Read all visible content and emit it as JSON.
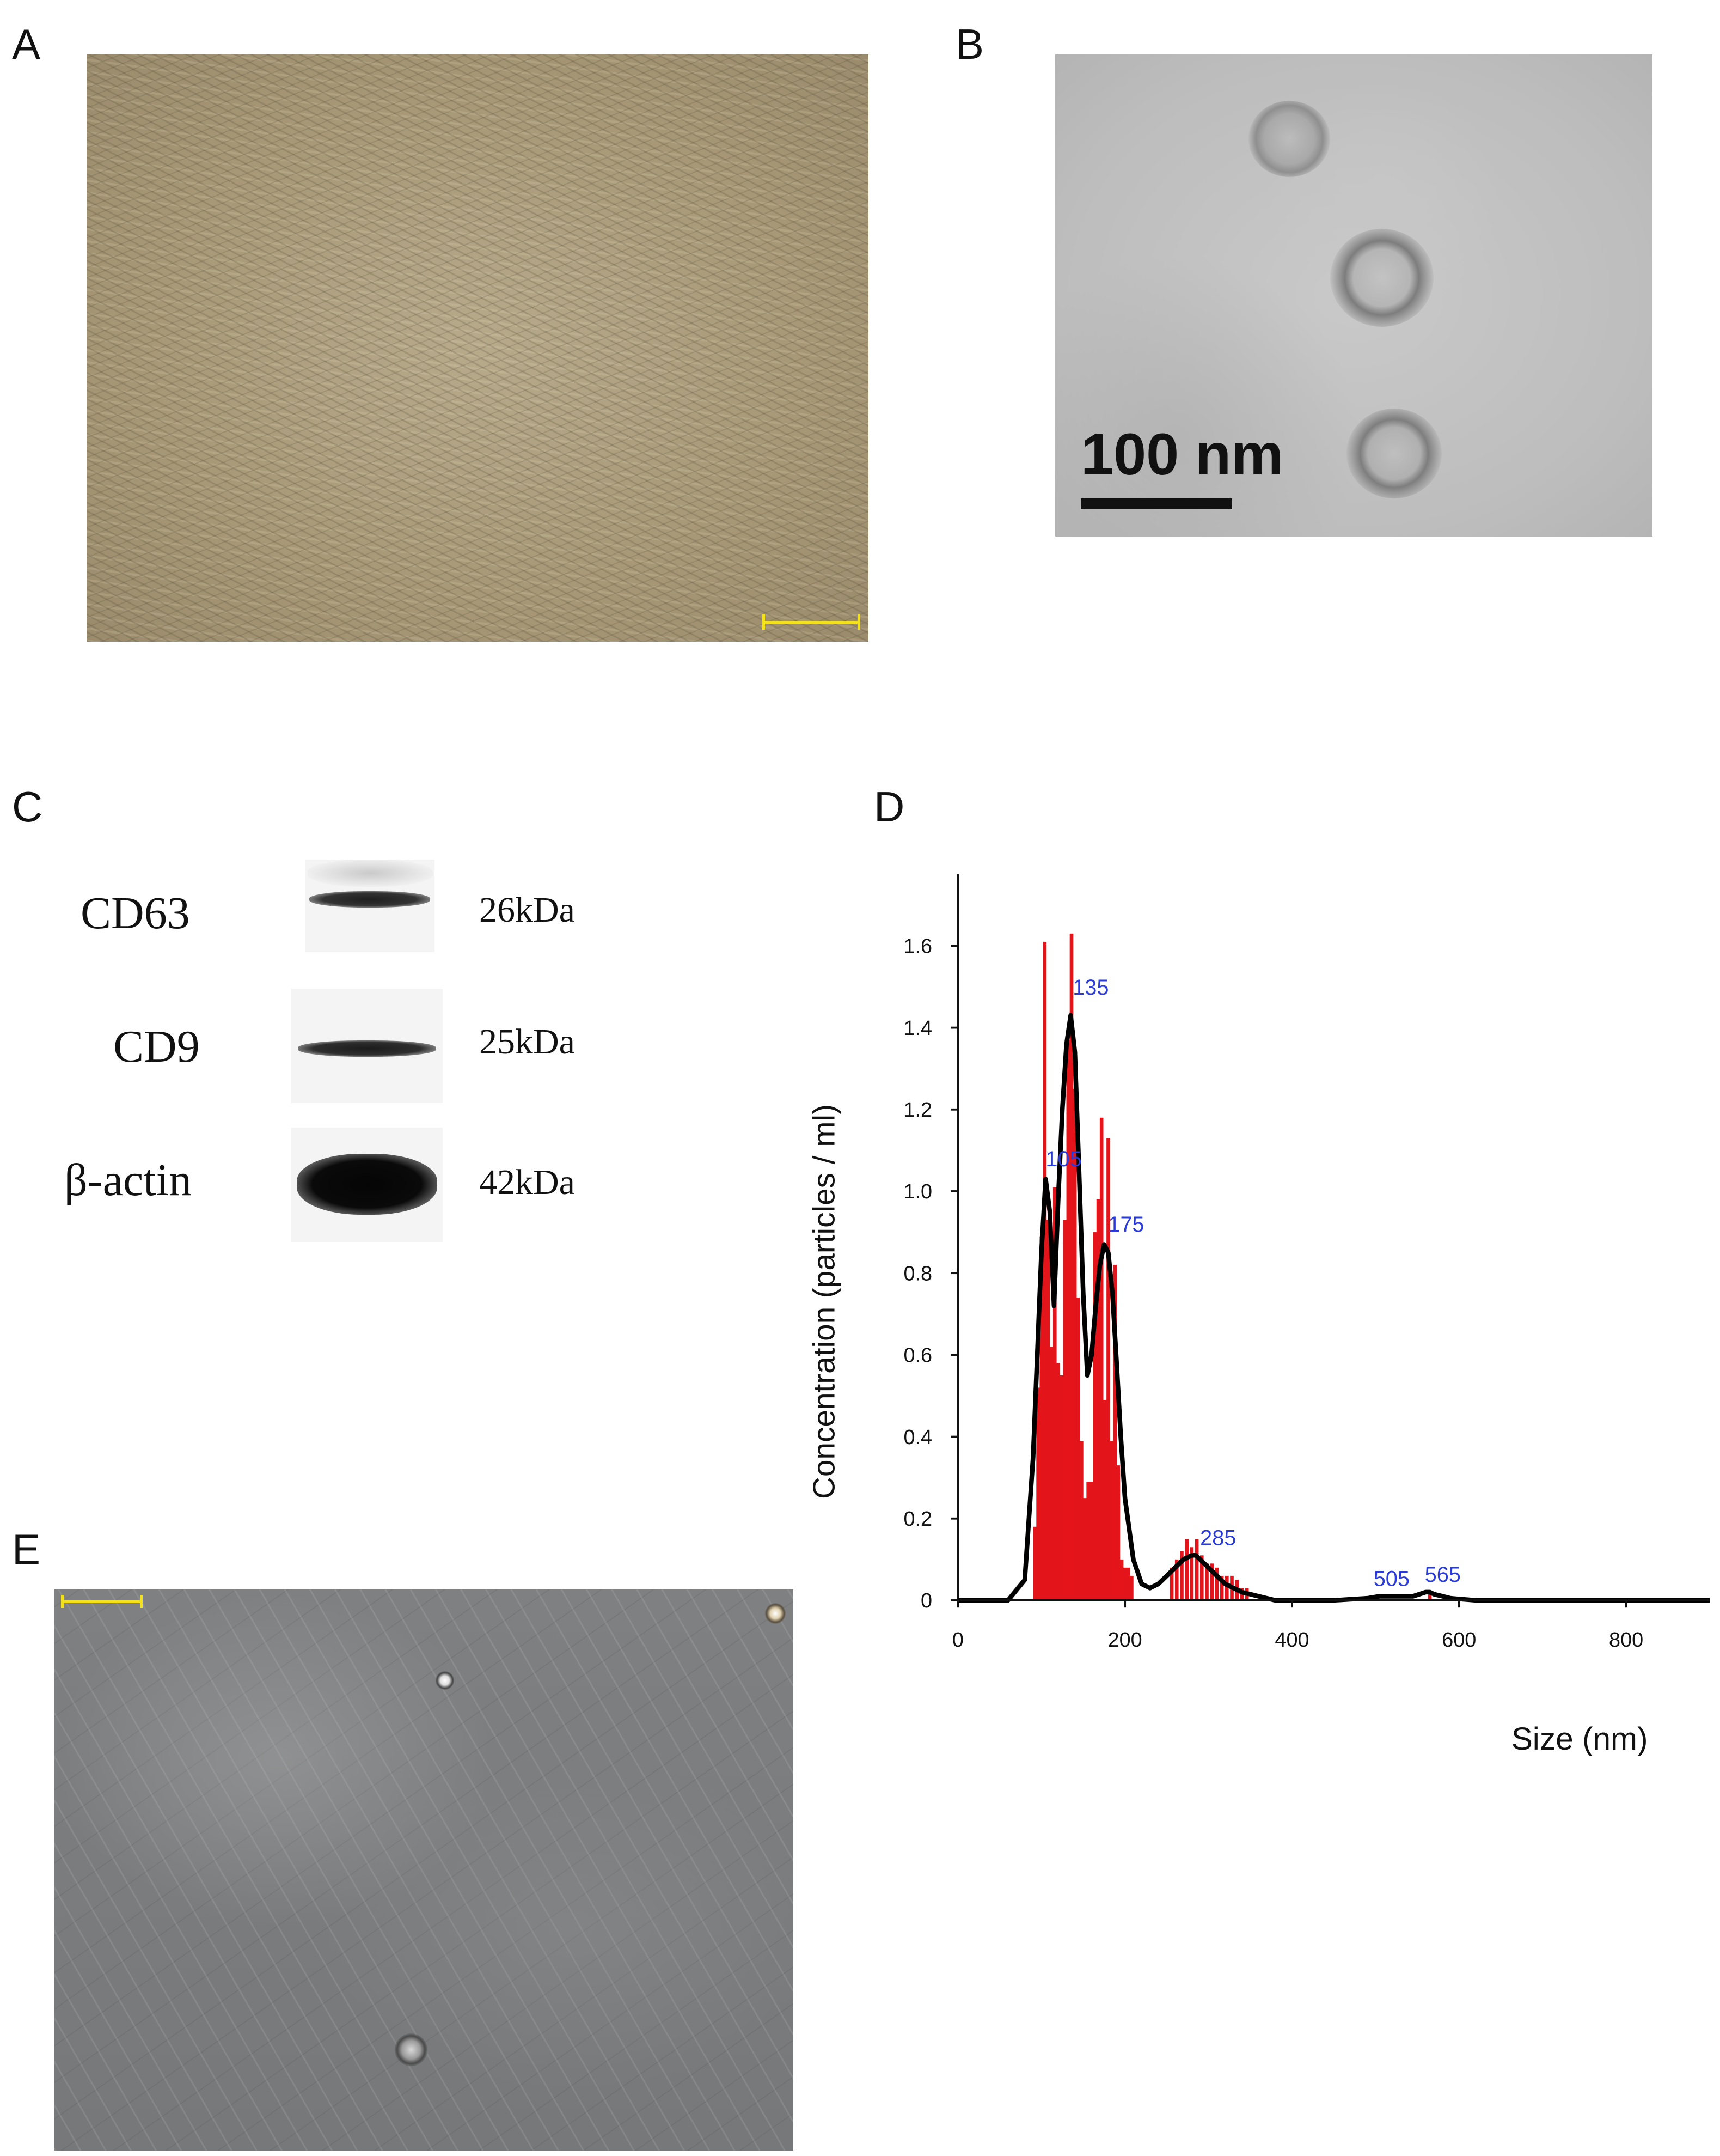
{
  "panels": {
    "a": {
      "letter": "A"
    },
    "b": {
      "letter": "B",
      "scale_label": "100 nm"
    },
    "c": {
      "letter": "C",
      "rows": [
        {
          "protein": "CD63",
          "kda": "26kDa"
        },
        {
          "protein": "CD9",
          "kda": "25kDa"
        },
        {
          "protein": "β-actin",
          "kda": "42kDa"
        }
      ]
    },
    "d": {
      "letter": "D"
    },
    "e": {
      "letter": "E"
    }
  },
  "colors": {
    "histogram": "#e4141b",
    "fit_line": "#000000",
    "peak_labels": "#2a3bd8",
    "scale_bar_light": "#f3e21a"
  },
  "chart_data": {
    "type": "line",
    "title": "",
    "xlabel": "Size (nm)",
    "ylabel": "Concentration (particles / ml)",
    "xlim": [
      0,
      900
    ],
    "ylim": [
      0,
      1.7
    ],
    "x_ticks": [
      "0",
      "200",
      "400",
      "600",
      "800"
    ],
    "y_ticks": [
      "0",
      "0.2",
      "0.4",
      "0.6",
      "0.8",
      "1.0",
      "1.2",
      "1.4",
      "1.6"
    ],
    "peak_labels": [
      {
        "x": 135,
        "y": 1.43,
        "label": "135"
      },
      {
        "x": 105,
        "y": 1.03,
        "label": "105"
      },
      {
        "x": 175,
        "y": 0.87,
        "label": "175"
      },
      {
        "x": 285,
        "y": 0.11,
        "label": "285"
      },
      {
        "x": 505,
        "y": 0.01,
        "label": "505"
      },
      {
        "x": 565,
        "y": 0.02,
        "label": "565"
      }
    ],
    "series": [
      {
        "kind": "fit_line",
        "x": [
          0,
          60,
          80,
          90,
          100,
          105,
          110,
          115,
          120,
          125,
          130,
          135,
          140,
          145,
          150,
          155,
          160,
          165,
          170,
          175,
          180,
          185,
          190,
          195,
          200,
          210,
          220,
          230,
          240,
          250,
          260,
          270,
          280,
          285,
          290,
          300,
          310,
          320,
          330,
          340,
          360,
          380,
          400,
          450,
          490,
          505,
          520,
          545,
          560,
          565,
          570,
          590,
          620,
          700,
          800,
          900
        ],
        "y": [
          0,
          0,
          0.05,
          0.35,
          0.85,
          1.03,
          0.95,
          0.72,
          0.98,
          1.2,
          1.36,
          1.43,
          1.34,
          1.05,
          0.75,
          0.55,
          0.6,
          0.72,
          0.82,
          0.87,
          0.85,
          0.75,
          0.58,
          0.4,
          0.25,
          0.1,
          0.04,
          0.03,
          0.04,
          0.06,
          0.08,
          0.1,
          0.11,
          0.11,
          0.1,
          0.08,
          0.06,
          0.04,
          0.03,
          0.02,
          0.01,
          0.0,
          0.0,
          0.0,
          0.005,
          0.01,
          0.01,
          0.01,
          0.02,
          0.02,
          0.015,
          0.005,
          0.0,
          0.0,
          0.0,
          0.0
        ]
      },
      {
        "kind": "histogram",
        "x": [
          92,
          96,
          100,
          104,
          108,
          112,
          116,
          120,
          124,
          128,
          132,
          136,
          140,
          144,
          148,
          152,
          156,
          160,
          164,
          168,
          172,
          176,
          180,
          184,
          188,
          192,
          196,
          200,
          204,
          208,
          256,
          262,
          268,
          274,
          280,
          286,
          292,
          298,
          304,
          310,
          316,
          322,
          328,
          334,
          340,
          346,
          500,
          565
        ],
        "y": [
          0.18,
          0.52,
          0.89,
          1.61,
          0.93,
          0.62,
          1.01,
          0.58,
          0.55,
          0.93,
          1.37,
          1.63,
          1.25,
          0.74,
          0.39,
          0.25,
          0.29,
          0.29,
          0.9,
          0.98,
          1.18,
          0.49,
          1.13,
          0.39,
          0.82,
          0.33,
          0.1,
          0.08,
          0.08,
          0.06,
          0.08,
          0.1,
          0.12,
          0.15,
          0.13,
          0.15,
          0.11,
          0.09,
          0.09,
          0.08,
          0.06,
          0.06,
          0.06,
          0.05,
          0.03,
          0.03,
          0.01,
          0.02
        ]
      }
    ]
  }
}
